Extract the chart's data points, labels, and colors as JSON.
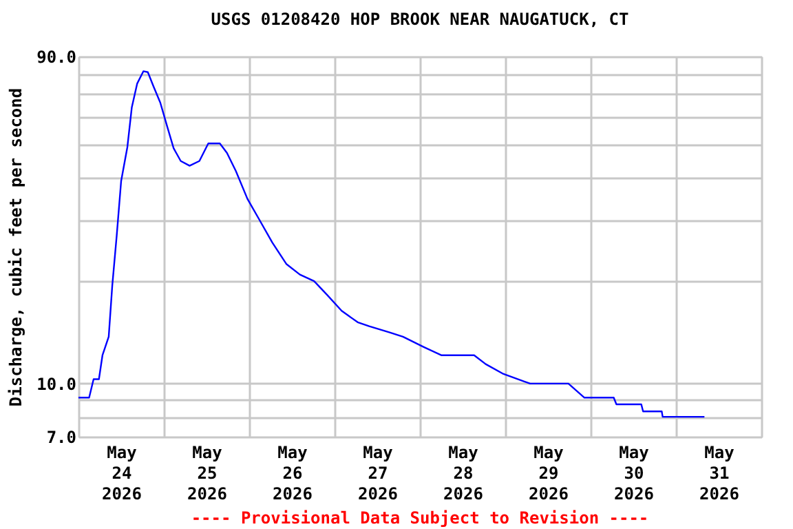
{
  "chart_data": {
    "type": "line",
    "title": "USGS 01208420 HOP BROOK NEAR NAUGATUCK, CT",
    "ylabel": "Discharge, cubic feet per second",
    "annotations": [
      "---- Provisional Data Subject to Revision ----"
    ],
    "log": "y",
    "grid": true,
    "line_style": "solid",
    "xlim": [
      "2026-05-24T00:00",
      "2026-06-01T00:00"
    ],
    "xticks": [
      {
        "value": "2026-05-24T00:00",
        "label": null
      },
      {
        "value": "2026-05-24T12:00",
        "label": "May 24 2026"
      },
      {
        "value": "2026-05-25T00:00",
        "label": null
      },
      {
        "value": "2026-05-25T12:00",
        "label": "May 25 2026"
      },
      {
        "value": "2026-05-26T00:00",
        "label": null
      },
      {
        "value": "2026-05-26T12:00",
        "label": "May 26 2026"
      },
      {
        "value": "2026-05-27T00:00",
        "label": null
      },
      {
        "value": "2026-05-27T12:00",
        "label": "May 27 2026"
      },
      {
        "value": "2026-05-28T00:00",
        "label": null
      },
      {
        "value": "2026-05-28T12:00",
        "label": "May 28 2026"
      },
      {
        "value": "2026-05-29T00:00",
        "label": null
      },
      {
        "value": "2026-05-29T12:00",
        "label": "May 29 2026"
      },
      {
        "value": "2026-05-30T00:00",
        "label": null
      },
      {
        "value": "2026-05-30T12:00",
        "label": "May 30 2026"
      },
      {
        "value": "2026-05-31T00:00",
        "label": null
      },
      {
        "value": "2026-05-31T12:00",
        "label": "May 31 2026"
      },
      {
        "value": "2026-06-01T00:00",
        "label": null
      }
    ],
    "ylim": [
      7,
      90
    ],
    "yticks": [
      {
        "value": 7,
        "label": "7.0"
      },
      {
        "value": 8,
        "label": null
      },
      {
        "value": 9,
        "label": null
      },
      {
        "value": 10,
        "label": "10.0"
      },
      {
        "value": 20,
        "label": null
      },
      {
        "value": 30,
        "label": null
      },
      {
        "value": 40,
        "label": null
      },
      {
        "value": 50,
        "label": null
      },
      {
        "value": 60,
        "label": null
      },
      {
        "value": 70,
        "label": null
      },
      {
        "value": 80,
        "label": null
      },
      {
        "value": 90,
        "label": "90.0"
      }
    ],
    "x": [
      "2026-05-24T00:00",
      "2026-05-24T03:00",
      "2026-05-24T04:15",
      "2026-05-24T05:45",
      "2026-05-24T06:45",
      "2026-05-24T08:30",
      "2026-05-24T09:30",
      "2026-05-24T10:45",
      "2026-05-24T12:00",
      "2026-05-24T13:45",
      "2026-05-24T15:00",
      "2026-05-24T16:30",
      "2026-05-24T18:15",
      "2026-05-24T19:30",
      "2026-05-24T21:00",
      "2026-05-24T23:00",
      "2026-05-25T01:00",
      "2026-05-25T02:45",
      "2026-05-25T04:45",
      "2026-05-25T07:15",
      "2026-05-25T10:00",
      "2026-05-25T12:30",
      "2026-05-25T15:45",
      "2026-05-25T17:45",
      "2026-05-25T20:15",
      "2026-05-25T23:30",
      "2026-05-26T02:45",
      "2026-05-26T06:30",
      "2026-05-26T10:30",
      "2026-05-26T14:15",
      "2026-05-26T18:15",
      "2026-05-26T22:00",
      "2026-05-27T02:00",
      "2026-05-27T06:30",
      "2026-05-27T09:45",
      "2026-05-27T15:30",
      "2026-05-27T19:15",
      "2026-05-28T01:00",
      "2026-05-28T06:00",
      "2026-05-28T15:15",
      "2026-05-28T18:30",
      "2026-05-28T23:15",
      "2026-05-29T07:00",
      "2026-05-29T17:45",
      "2026-05-29T22:15",
      "2026-05-30T06:30",
      "2026-05-30T07:15",
      "2026-05-30T14:15",
      "2026-05-30T14:45",
      "2026-05-30T20:00",
      "2026-05-30T20:15",
      "2026-05-31T08:00"
    ],
    "series": [
      {
        "color": "#0000ff",
        "values": [
          9.1,
          9.1,
          10.3,
          10.3,
          12.1,
          13.7,
          19.3,
          27,
          39,
          49,
          64,
          75,
          81.5,
          81,
          74,
          66,
          56,
          48.6,
          44.6,
          43.2,
          44.6,
          50.2,
          50.2,
          47.1,
          41.7,
          34.6,
          30.2,
          25.8,
          22.3,
          20.8,
          19.9,
          18.1,
          16.3,
          15.1,
          14.7,
          14.1,
          13.7,
          12.8,
          12.1,
          12.1,
          11.4,
          10.7,
          10.0,
          10.0,
          9.1,
          9.1,
          8.7,
          8.7,
          8.3,
          8.3,
          8.0,
          8.0
        ]
      }
    ]
  }
}
